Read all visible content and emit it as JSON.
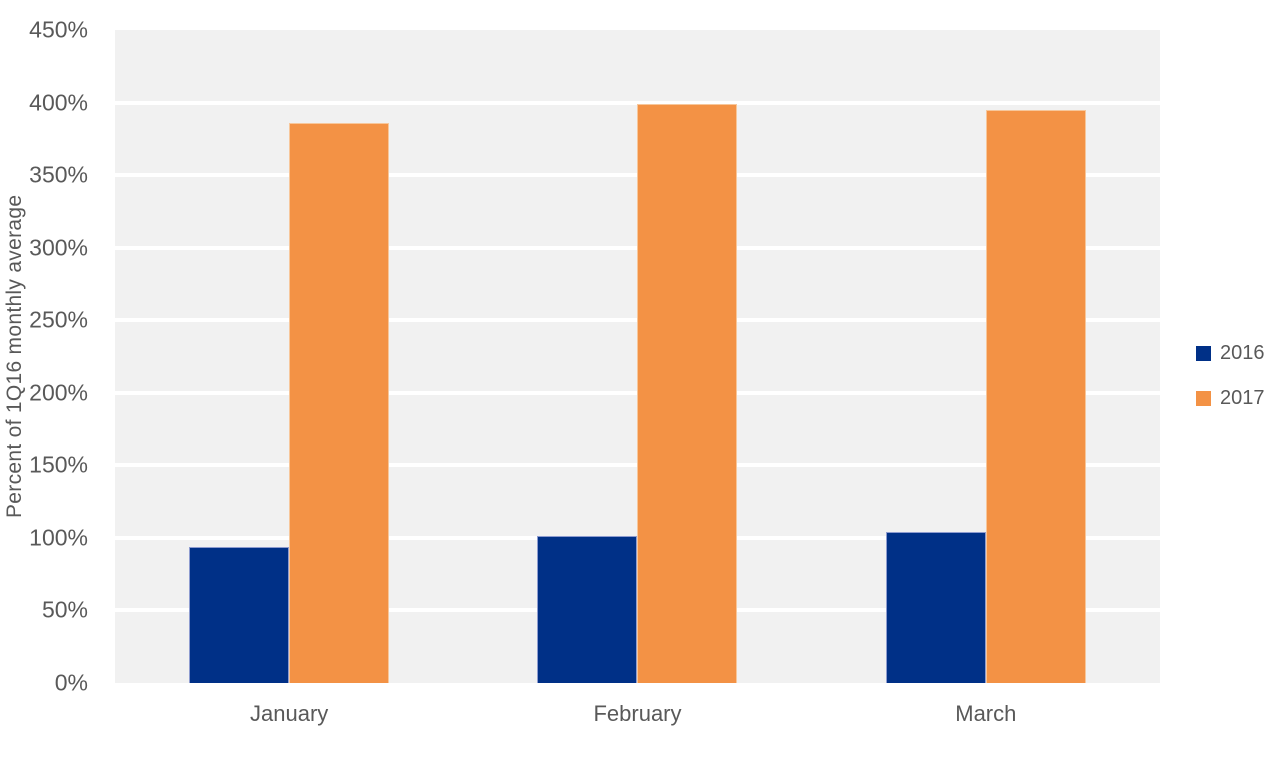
{
  "chart_data": {
    "type": "bar",
    "title": "",
    "xlabel": "",
    "ylabel": "Percent of 1Q16 monthly average",
    "categories": [
      "January",
      "February",
      "March"
    ],
    "series": [
      {
        "name": "2016",
        "color": "#003087",
        "border": "#8e9cd0",
        "values": [
          94,
          101,
          104
        ]
      },
      {
        "name": "2017",
        "color": "#F39245",
        "border": "#f7c79b",
        "values": [
          386,
          399,
          395
        ]
      }
    ],
    "ylim": [
      0,
      450
    ],
    "ytick_step": 50,
    "y_tick_labels": [
      "0%",
      "50%",
      "100%",
      "150%",
      "200%",
      "250%",
      "300%",
      "350%",
      "400%",
      "450%"
    ],
    "grid": true,
    "legend_position": "right",
    "plot_background": "#F1F1F1",
    "gridline_color": "#FFFFFF",
    "text_color": "#595959"
  }
}
